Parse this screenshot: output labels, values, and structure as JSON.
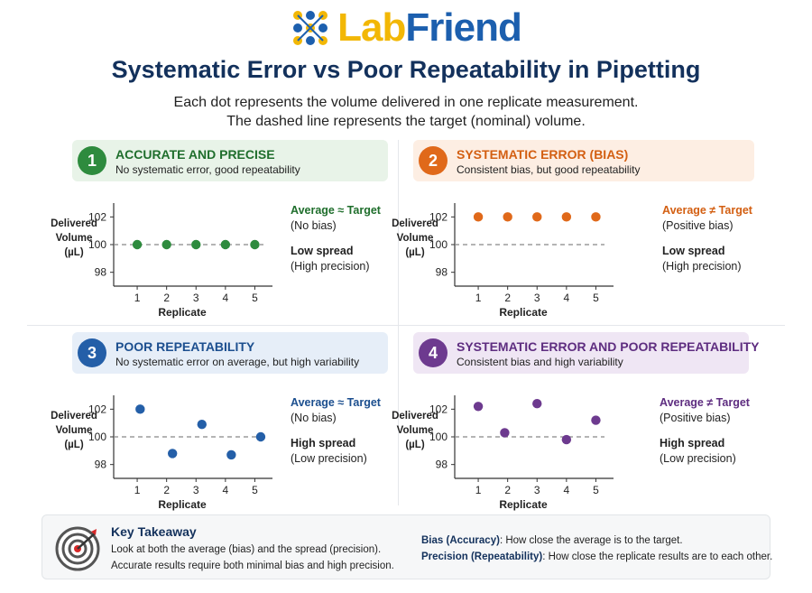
{
  "logo": {
    "part1": "Lab",
    "part2": "Friend"
  },
  "title": "Systematic Error vs Poor Repeatability in Pipetting",
  "subtitle": {
    "line1": "Each dot represents the volume delivered in one replicate measurement.",
    "line2": "The dashed line represents the target (nominal) volume."
  },
  "colors": {
    "green": "#2e8b3e",
    "orange": "#e0691a",
    "blue": "#245fa8",
    "purple": "#6d3a8f",
    "navy": "#13315c",
    "target_red": "#d62828"
  },
  "panels": [
    {
      "number": "1",
      "title": "ACCURATE AND PRECISE",
      "subtitle": "No systematic error, good repeatability",
      "stat_avg": "Average ≈ Target",
      "stat_avg_sub": "(No bias)",
      "stat_spread": "Low spread",
      "stat_spread_sub": "(High precision)"
    },
    {
      "number": "2",
      "title": "SYSTEMATIC ERROR (BIAS)",
      "subtitle": "Consistent bias, but good repeatability",
      "stat_avg": "Average ≠ Target",
      "stat_avg_sub": "(Positive bias)",
      "stat_spread": "Low spread",
      "stat_spread_sub": "(High precision)"
    },
    {
      "number": "3",
      "title": "POOR REPEATABILITY",
      "subtitle": "No systematic error on average, but high variability",
      "stat_avg": "Average ≈ Target",
      "stat_avg_sub": "(No bias)",
      "stat_spread": "High spread",
      "stat_spread_sub": "(Low precision)"
    },
    {
      "number": "4",
      "title": "SYSTEMATIC ERROR AND POOR REPEATABILITY",
      "subtitle": "Consistent bias and high variability",
      "stat_avg": "Average ≠ Target",
      "stat_avg_sub": "(Positive bias)",
      "stat_spread": "High spread",
      "stat_spread_sub": "(Low precision)"
    }
  ],
  "chart_data": [
    {
      "type": "scatter",
      "title": "ACCURATE AND PRECISE",
      "xlabel": "Replicate",
      "ylabel": [
        "Delivered",
        "Volume",
        "(µL)"
      ],
      "x": [
        1,
        2,
        3,
        4,
        5
      ],
      "y": [
        100,
        100,
        100,
        100,
        100
      ],
      "xticks": [
        1,
        2,
        3,
        4,
        5
      ],
      "yticks": [
        98,
        100,
        102
      ],
      "target": 100,
      "ylim": [
        97,
        103
      ],
      "xlim": [
        0.2,
        5.6
      ],
      "color": "#2e8b3e"
    },
    {
      "type": "scatter",
      "title": "SYSTEMATIC ERROR (BIAS)",
      "xlabel": "Replicate",
      "ylabel": [
        "Delivered",
        "Volume",
        "(µL)"
      ],
      "x": [
        1,
        2,
        3,
        4,
        5
      ],
      "y": [
        102,
        102,
        102,
        102,
        102
      ],
      "xticks": [
        1,
        2,
        3,
        4,
        5
      ],
      "yticks": [
        98,
        100,
        102
      ],
      "target": 100,
      "ylim": [
        97,
        103
      ],
      "xlim": [
        0.2,
        5.6
      ],
      "color": "#e0691a"
    },
    {
      "type": "scatter",
      "title": "POOR REPEATABILITY",
      "xlabel": "Replicate",
      "ylabel": [
        "Delivered",
        "Volume",
        "(µL)"
      ],
      "x": [
        1.1,
        2.2,
        3.2,
        4.2,
        5.2
      ],
      "y": [
        102,
        98.8,
        100.9,
        98.7,
        100
      ],
      "xticks": [
        1,
        2,
        3,
        4,
        5
      ],
      "yticks": [
        98,
        100,
        102
      ],
      "target": 100,
      "ylim": [
        97,
        103
      ],
      "xlim": [
        0.2,
        5.6
      ],
      "color": "#245fa8"
    },
    {
      "type": "scatter",
      "title": "SYSTEMATIC ERROR AND POOR REPEATABILITY",
      "xlabel": "Replicate",
      "ylabel": [
        "Delivered",
        "Volume",
        "(µL)"
      ],
      "x": [
        1,
        1.9,
        3,
        4,
        5
      ],
      "y": [
        102.2,
        100.3,
        102.4,
        99.8,
        101.2
      ],
      "xticks": [
        1,
        2,
        3,
        4,
        5
      ],
      "yticks": [
        98,
        100,
        102
      ],
      "target": 100,
      "ylim": [
        97,
        103
      ],
      "xlim": [
        0.2,
        5.6
      ],
      "color": "#6d3a8f"
    }
  ],
  "takeaway": {
    "title": "Key Takeaway",
    "line1": "Look at both the average (bias) and the spread (precision).",
    "line2": "Accurate results require both minimal bias and high precision.",
    "bias_term": "Bias (Accuracy)",
    "bias_def": ": How close the average is to the target.",
    "precision_term": "Precision (Repeatability)",
    "precision_def": ": How close the replicate results are to each other."
  }
}
